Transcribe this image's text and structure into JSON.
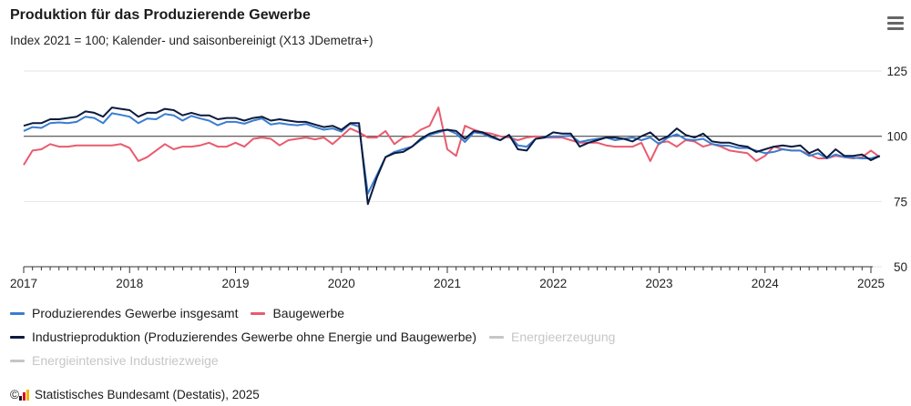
{
  "title": "Produktion für das Produzierende Gewerbe",
  "subtitle": "Index 2021 = 100; Kalender- und saisonbereinigt (X13 JDemetra+)",
  "menu_icon": "hamburger-menu-icon",
  "source": "Statistisches Bundesamt (Destatis), 2025",
  "source_prefix": "©",
  "legend": [
    {
      "label": "Produzierendes Gewerbe insgesamt",
      "color": "#3a7dd0",
      "visible": true
    },
    {
      "label": "Baugewerbe",
      "color": "#e85c6e",
      "visible": true
    },
    {
      "label": "Industrieproduktion (Produzierendes Gewerbe ohne Energie und Baugewerbe)",
      "color": "#0c1a3d",
      "visible": true
    },
    {
      "label": "Energieerzeugung",
      "color": "#c6c6c6",
      "visible": false
    },
    {
      "label": "Energieintensive Industriezweige",
      "color": "#c6c6c6",
      "visible": false
    }
  ],
  "chart_data": {
    "type": "line",
    "title": "Produktion für das Produzierende Gewerbe",
    "subtitle": "Index 2021 = 100; Kalender- und saisonbereinigt (X13 JDemetra+)",
    "x_start": "2017-01",
    "x_end": "2025-01",
    "x_tick_labels": [
      "2017",
      "2018",
      "2019",
      "2020",
      "2021",
      "2022",
      "2023",
      "2024",
      "2025"
    ],
    "ylim": [
      50,
      125
    ],
    "y_ticks": [
      50,
      75,
      100,
      125
    ],
    "reference_line": 100,
    "grid": "horizontal",
    "legend_position": "bottom",
    "series": [
      {
        "name": "Produzierendes Gewerbe insgesamt",
        "color": "#3a7dd0",
        "values": [
          102.0,
          103.5,
          103.2,
          105.0,
          105.3,
          105.0,
          105.5,
          107.5,
          107.0,
          105.0,
          108.8,
          108.2,
          107.5,
          105.0,
          106.8,
          106.5,
          108.5,
          108.0,
          106.0,
          107.8,
          106.8,
          106.0,
          104.2,
          105.5,
          105.5,
          104.8,
          106.0,
          106.8,
          104.5,
          105.0,
          104.5,
          104.2,
          104.7,
          103.5,
          102.5,
          103.0,
          101.8,
          104.8,
          103.7,
          78.0,
          85.0,
          92.0,
          94.0,
          95.0,
          96.0,
          98.5,
          100.5,
          101.5,
          102.5,
          101.0,
          97.8,
          101.5,
          101.0,
          99.5,
          98.5,
          100.5,
          96.5,
          96.0,
          99.0,
          99.5,
          100.0,
          100.0,
          100.2,
          97.8,
          98.5,
          99.0,
          99.5,
          98.5,
          99.0,
          99.5,
          98.5,
          99.5,
          97.0,
          99.5,
          100.8,
          98.8,
          98.5,
          99.0,
          97.0,
          96.5,
          96.3,
          95.5,
          95.5,
          94.5,
          93.5,
          94.0,
          95.0,
          94.5,
          94.5,
          92.5,
          93.5,
          91.5,
          93.0,
          92.0,
          91.8,
          91.5,
          91.5,
          92.5
        ]
      },
      {
        "name": "Baugewerbe",
        "color": "#e85c6e",
        "values": [
          89.0,
          94.5,
          95.0,
          97.0,
          96.0,
          96.0,
          96.5,
          96.5,
          96.5,
          96.5,
          96.5,
          97.0,
          95.5,
          90.5,
          92.0,
          94.5,
          97.0,
          95.0,
          96.0,
          96.0,
          96.5,
          97.5,
          96.0,
          96.0,
          97.5,
          96.0,
          99.0,
          99.5,
          99.0,
          96.5,
          98.5,
          99.0,
          99.5,
          98.8,
          99.5,
          97.0,
          100.0,
          103.0,
          101.5,
          99.5,
          99.5,
          102.0,
          97.0,
          99.5,
          100.0,
          102.5,
          104.0,
          111.0,
          95.0,
          92.5,
          104.0,
          102.5,
          101.5,
          101.0,
          100.0,
          99.5,
          98.5,
          99.5,
          100.0,
          99.5,
          99.5,
          99.5,
          98.5,
          97.5,
          97.5,
          97.5,
          96.5,
          96.0,
          96.0,
          96.0,
          97.5,
          90.5,
          97.5,
          98.0,
          96.0,
          98.5,
          98.0,
          96.0,
          97.0,
          96.0,
          94.5,
          94.0,
          93.5,
          90.5,
          92.5,
          96.0,
          95.0,
          94.5,
          94.5,
          93.0,
          91.5,
          91.5,
          92.5,
          92.0,
          91.5,
          92.0,
          94.5,
          92.0
        ]
      },
      {
        "name": "Industrieproduktion (Produzierendes Gewerbe ohne Energie und Baugewerbe)",
        "color": "#0c1a3d",
        "values": [
          104.0,
          105.0,
          105.0,
          106.5,
          106.5,
          107.0,
          107.5,
          109.5,
          109.0,
          107.5,
          111.0,
          110.5,
          110.0,
          107.5,
          109.0,
          109.0,
          110.5,
          110.0,
          108.0,
          109.0,
          108.0,
          108.0,
          106.5,
          107.0,
          107.0,
          106.0,
          107.0,
          107.5,
          106.0,
          106.5,
          106.0,
          105.5,
          105.5,
          104.5,
          103.5,
          104.0,
          102.5,
          105.0,
          105.0,
          74.0,
          84.0,
          92.0,
          93.5,
          94.0,
          96.0,
          99.0,
          101.0,
          102.0,
          102.5,
          102.0,
          99.0,
          102.0,
          101.5,
          100.0,
          98.5,
          100.5,
          95.0,
          94.5,
          99.0,
          99.5,
          101.5,
          101.0,
          101.0,
          96.0,
          97.5,
          98.5,
          99.5,
          99.5,
          99.0,
          98.0,
          100.0,
          101.5,
          98.5,
          100.0,
          103.0,
          100.5,
          99.5,
          101.0,
          98.0,
          97.5,
          97.5,
          96.5,
          96.0,
          94.0,
          95.0,
          96.0,
          96.5,
          96.0,
          96.5,
          93.5,
          95.0,
          91.8,
          95.0,
          92.5,
          92.5,
          93.0,
          90.8,
          92.5
        ]
      }
    ]
  }
}
